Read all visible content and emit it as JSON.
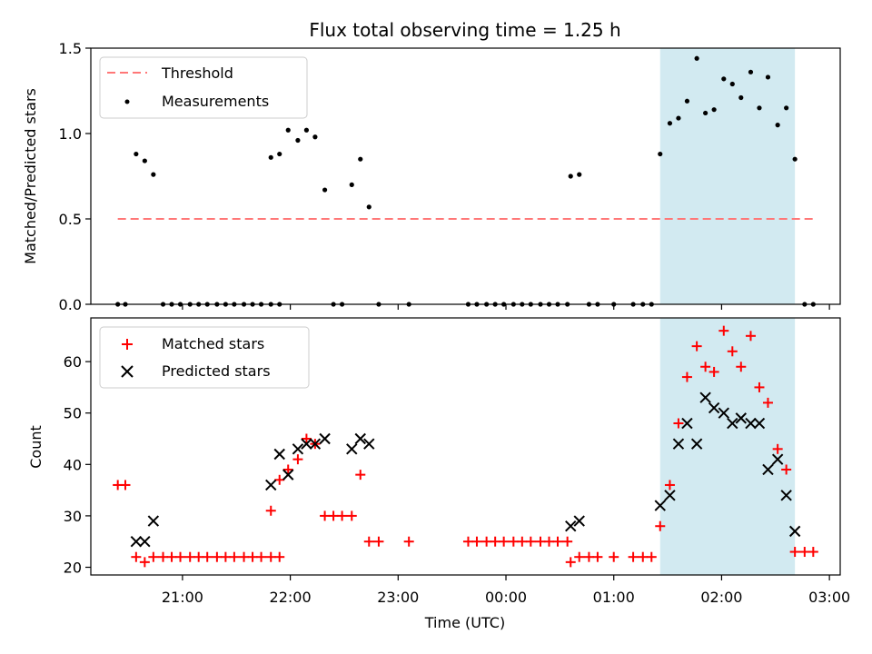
{
  "chart_data": [
    {
      "type": "scatter",
      "title": "Flux total observing time = 1.25 h",
      "xlabel": "",
      "ylabel": "Matched/Predicted stars",
      "x_unit": "hours since 00:00 UTC (negative = previous evening)",
      "xlim": [
        -3.85,
        3.1
      ],
      "ylim": [
        0.0,
        1.5
      ],
      "yticks": [
        0.0,
        0.5,
        1.0,
        1.5
      ],
      "ytick_labels": [
        "0.0",
        "0.5",
        "1.0",
        "1.5"
      ],
      "shaded_span": {
        "x": [
          1.43,
          2.68
        ],
        "color": "#add8e6"
      },
      "legend": {
        "position": "top-left",
        "entries": [
          "Threshold",
          "Measurements"
        ]
      },
      "series": [
        {
          "name": "Threshold",
          "kind": "dashed-line",
          "color": "#ff7777",
          "x": [
            -3.6,
            2.85
          ],
          "y": [
            0.5,
            0.5
          ]
        },
        {
          "name": "Measurements",
          "kind": "dot",
          "color": "#000000",
          "points": [
            [
              -3.6,
              0
            ],
            [
              -3.53,
              0
            ],
            [
              -3.43,
              0.88
            ],
            [
              -3.35,
              0.84
            ],
            [
              -3.27,
              0.76
            ],
            [
              -3.18,
              0
            ],
            [
              -3.1,
              0
            ],
            [
              -3.02,
              0
            ],
            [
              -2.93,
              0
            ],
            [
              -2.85,
              0
            ],
            [
              -2.77,
              0
            ],
            [
              -2.68,
              0
            ],
            [
              -2.6,
              0
            ],
            [
              -2.52,
              0
            ],
            [
              -2.43,
              0
            ],
            [
              -2.35,
              0
            ],
            [
              -2.27,
              0
            ],
            [
              -2.18,
              0
            ],
            [
              -2.1,
              0
            ],
            [
              -2.18,
              0.86
            ],
            [
              -2.1,
              0.88
            ],
            [
              -2.02,
              1.02
            ],
            [
              -1.93,
              0.96
            ],
            [
              -1.85,
              1.02
            ],
            [
              -1.77,
              0.98
            ],
            [
              -1.68,
              0.67
            ],
            [
              -1.6,
              0
            ],
            [
              -1.52,
              0
            ],
            [
              -1.43,
              0.7
            ],
            [
              -1.35,
              0.85
            ],
            [
              -1.27,
              0.57
            ],
            [
              -1.18,
              0
            ],
            [
              -0.9,
              0
            ],
            [
              -0.35,
              0
            ],
            [
              -0.27,
              0
            ],
            [
              -0.18,
              0
            ],
            [
              -0.1,
              0
            ],
            [
              -0.02,
              0
            ],
            [
              0.07,
              0
            ],
            [
              0.15,
              0
            ],
            [
              0.23,
              0
            ],
            [
              0.32,
              0
            ],
            [
              0.4,
              0
            ],
            [
              0.48,
              0
            ],
            [
              0.57,
              0
            ],
            [
              0.6,
              0.75
            ],
            [
              0.68,
              0.76
            ],
            [
              0.77,
              0
            ],
            [
              0.85,
              0
            ],
            [
              1.0,
              0
            ],
            [
              1.18,
              0
            ],
            [
              1.27,
              0
            ],
            [
              1.35,
              0
            ],
            [
              1.43,
              0.88
            ],
            [
              1.52,
              1.06
            ],
            [
              1.6,
              1.09
            ],
            [
              1.68,
              1.19
            ],
            [
              1.77,
              1.44
            ],
            [
              1.85,
              1.12
            ],
            [
              1.93,
              1.14
            ],
            [
              2.02,
              1.32
            ],
            [
              2.1,
              1.29
            ],
            [
              2.18,
              1.21
            ],
            [
              2.27,
              1.36
            ],
            [
              2.35,
              1.15
            ],
            [
              2.43,
              1.33
            ],
            [
              2.52,
              1.05
            ],
            [
              2.6,
              1.15
            ],
            [
              2.68,
              0.85
            ],
            [
              2.77,
              0
            ],
            [
              2.85,
              0
            ]
          ]
        }
      ]
    },
    {
      "type": "scatter",
      "title": "",
      "xlabel": "Time (UTC)",
      "ylabel": "Count",
      "x_unit": "hours since 00:00 UTC (negative = previous evening)",
      "xlim": [
        -3.85,
        3.1
      ],
      "ylim": [
        18.5,
        68.5
      ],
      "xticks": [
        -3,
        -2,
        -1,
        0,
        1,
        2,
        3
      ],
      "xtick_labels": [
        "21:00",
        "22:00",
        "23:00",
        "00:00",
        "01:00",
        "02:00",
        "03:00"
      ],
      "yticks": [
        20,
        30,
        40,
        50,
        60
      ],
      "ytick_labels": [
        "20",
        "30",
        "40",
        "50",
        "60"
      ],
      "shaded_span": {
        "x": [
          1.43,
          2.68
        ],
        "color": "#add8e6"
      },
      "legend": {
        "position": "top-left",
        "entries": [
          "Matched stars",
          "Predicted stars"
        ]
      },
      "series": [
        {
          "name": "Matched stars",
          "kind": "plus",
          "color": "#ff0000",
          "points": [
            [
              -3.6,
              36
            ],
            [
              -3.53,
              36
            ],
            [
              -3.43,
              22
            ],
            [
              -3.35,
              21
            ],
            [
              -3.27,
              22
            ],
            [
              -3.18,
              22
            ],
            [
              -3.1,
              22
            ],
            [
              -3.02,
              22
            ],
            [
              -2.93,
              22
            ],
            [
              -2.85,
              22
            ],
            [
              -2.77,
              22
            ],
            [
              -2.68,
              22
            ],
            [
              -2.6,
              22
            ],
            [
              -2.52,
              22
            ],
            [
              -2.43,
              22
            ],
            [
              -2.35,
              22
            ],
            [
              -2.27,
              22
            ],
            [
              -2.18,
              22
            ],
            [
              -2.1,
              22
            ],
            [
              -2.18,
              31
            ],
            [
              -2.1,
              37
            ],
            [
              -2.02,
              39
            ],
            [
              -1.93,
              41
            ],
            [
              -1.85,
              45
            ],
            [
              -1.77,
              44
            ],
            [
              -1.68,
              30
            ],
            [
              -1.6,
              30
            ],
            [
              -1.52,
              30
            ],
            [
              -1.43,
              30
            ],
            [
              -1.35,
              38
            ],
            [
              -1.27,
              25
            ],
            [
              -1.18,
              25
            ],
            [
              -0.9,
              25
            ],
            [
              -0.35,
              25
            ],
            [
              -0.27,
              25
            ],
            [
              -0.18,
              25
            ],
            [
              -0.1,
              25
            ],
            [
              -0.02,
              25
            ],
            [
              0.07,
              25
            ],
            [
              0.15,
              25
            ],
            [
              0.23,
              25
            ],
            [
              0.32,
              25
            ],
            [
              0.4,
              25
            ],
            [
              0.48,
              25
            ],
            [
              0.57,
              25
            ],
            [
              0.6,
              21
            ],
            [
              0.68,
              22
            ],
            [
              0.77,
              22
            ],
            [
              0.85,
              22
            ],
            [
              1.0,
              22
            ],
            [
              1.18,
              22
            ],
            [
              1.27,
              22
            ],
            [
              1.35,
              22
            ],
            [
              1.43,
              28
            ],
            [
              1.52,
              36
            ],
            [
              1.6,
              48
            ],
            [
              1.68,
              57
            ],
            [
              1.77,
              63
            ],
            [
              1.85,
              59
            ],
            [
              1.93,
              58
            ],
            [
              2.02,
              66
            ],
            [
              2.1,
              62
            ],
            [
              2.18,
              59
            ],
            [
              2.27,
              65
            ],
            [
              2.35,
              55
            ],
            [
              2.43,
              52
            ],
            [
              2.52,
              43
            ],
            [
              2.6,
              39
            ],
            [
              2.68,
              23
            ],
            [
              2.77,
              23
            ],
            [
              2.85,
              23
            ]
          ]
        },
        {
          "name": "Predicted stars",
          "kind": "x",
          "color": "#000000",
          "points": [
            [
              -3.43,
              25
            ],
            [
              -3.35,
              25
            ],
            [
              -3.27,
              29
            ],
            [
              -2.18,
              36
            ],
            [
              -2.1,
              42
            ],
            [
              -2.02,
              38
            ],
            [
              -1.93,
              43
            ],
            [
              -1.85,
              44
            ],
            [
              -1.77,
              44
            ],
            [
              -1.68,
              45
            ],
            [
              -1.43,
              43
            ],
            [
              -1.35,
              45
            ],
            [
              -1.27,
              44
            ],
            [
              0.6,
              28
            ],
            [
              0.68,
              29
            ],
            [
              1.43,
              32
            ],
            [
              1.52,
              34
            ],
            [
              1.6,
              44
            ],
            [
              1.68,
              48
            ],
            [
              1.77,
              44
            ],
            [
              1.85,
              53
            ],
            [
              1.93,
              51
            ],
            [
              2.02,
              50
            ],
            [
              2.1,
              48
            ],
            [
              2.18,
              49
            ],
            [
              2.27,
              48
            ],
            [
              2.35,
              48
            ],
            [
              2.43,
              39
            ],
            [
              2.52,
              41
            ],
            [
              2.6,
              34
            ],
            [
              2.68,
              27
            ]
          ]
        }
      ]
    }
  ]
}
